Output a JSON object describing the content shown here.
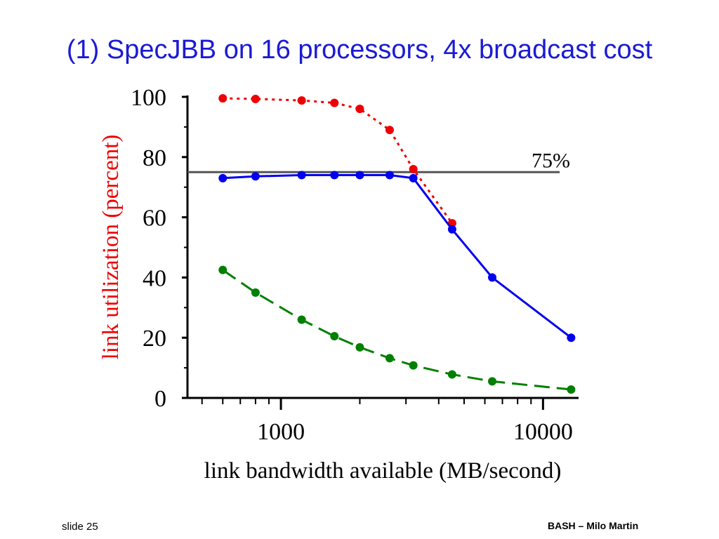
{
  "slide": {
    "title": "(1) SpecJBB on 16 processors, 4x broadcast cost",
    "footer_left": "slide 25",
    "footer_right": "BASH – Milo Martin"
  },
  "chart_data": {
    "type": "line",
    "title": "",
    "xlabel": "link bandwidth available (MB/second)",
    "ylabel": "link utilization (percent)",
    "xscale": "log",
    "xlim": [
      440,
      13500
    ],
    "ylim": [
      0,
      100
    ],
    "x_tick_labels": [
      "1000",
      "10000"
    ],
    "y_tick_labels": [
      "0",
      "20",
      "40",
      "60",
      "80",
      "100"
    ],
    "grid": false,
    "reference_line": {
      "y": 75,
      "label": "75%",
      "color": "#555555"
    },
    "series": [
      {
        "color": "#ee0000",
        "style": "dotted",
        "x": [
          600,
          800,
          1200,
          1600,
          2000,
          2600,
          3200,
          4500
        ],
        "y": [
          99.5,
          99.3,
          98.8,
          98,
          96,
          89,
          76,
          58
        ]
      },
      {
        "color": "#0000ee",
        "style": "solid",
        "x": [
          600,
          800,
          1200,
          1600,
          2000,
          2600,
          3200,
          4500,
          6400,
          12800
        ],
        "y": [
          73,
          73.6,
          74,
          74,
          74,
          74,
          73,
          56,
          40,
          20
        ]
      },
      {
        "color": "#008000",
        "style": "dashed",
        "x": [
          600,
          800,
          1200,
          1600,
          2000,
          2600,
          3200,
          4500,
          6400,
          12800
        ],
        "y": [
          42.5,
          35,
          26,
          20.5,
          16.8,
          13.2,
          10.8,
          7.8,
          5.5,
          2.8
        ]
      }
    ]
  }
}
